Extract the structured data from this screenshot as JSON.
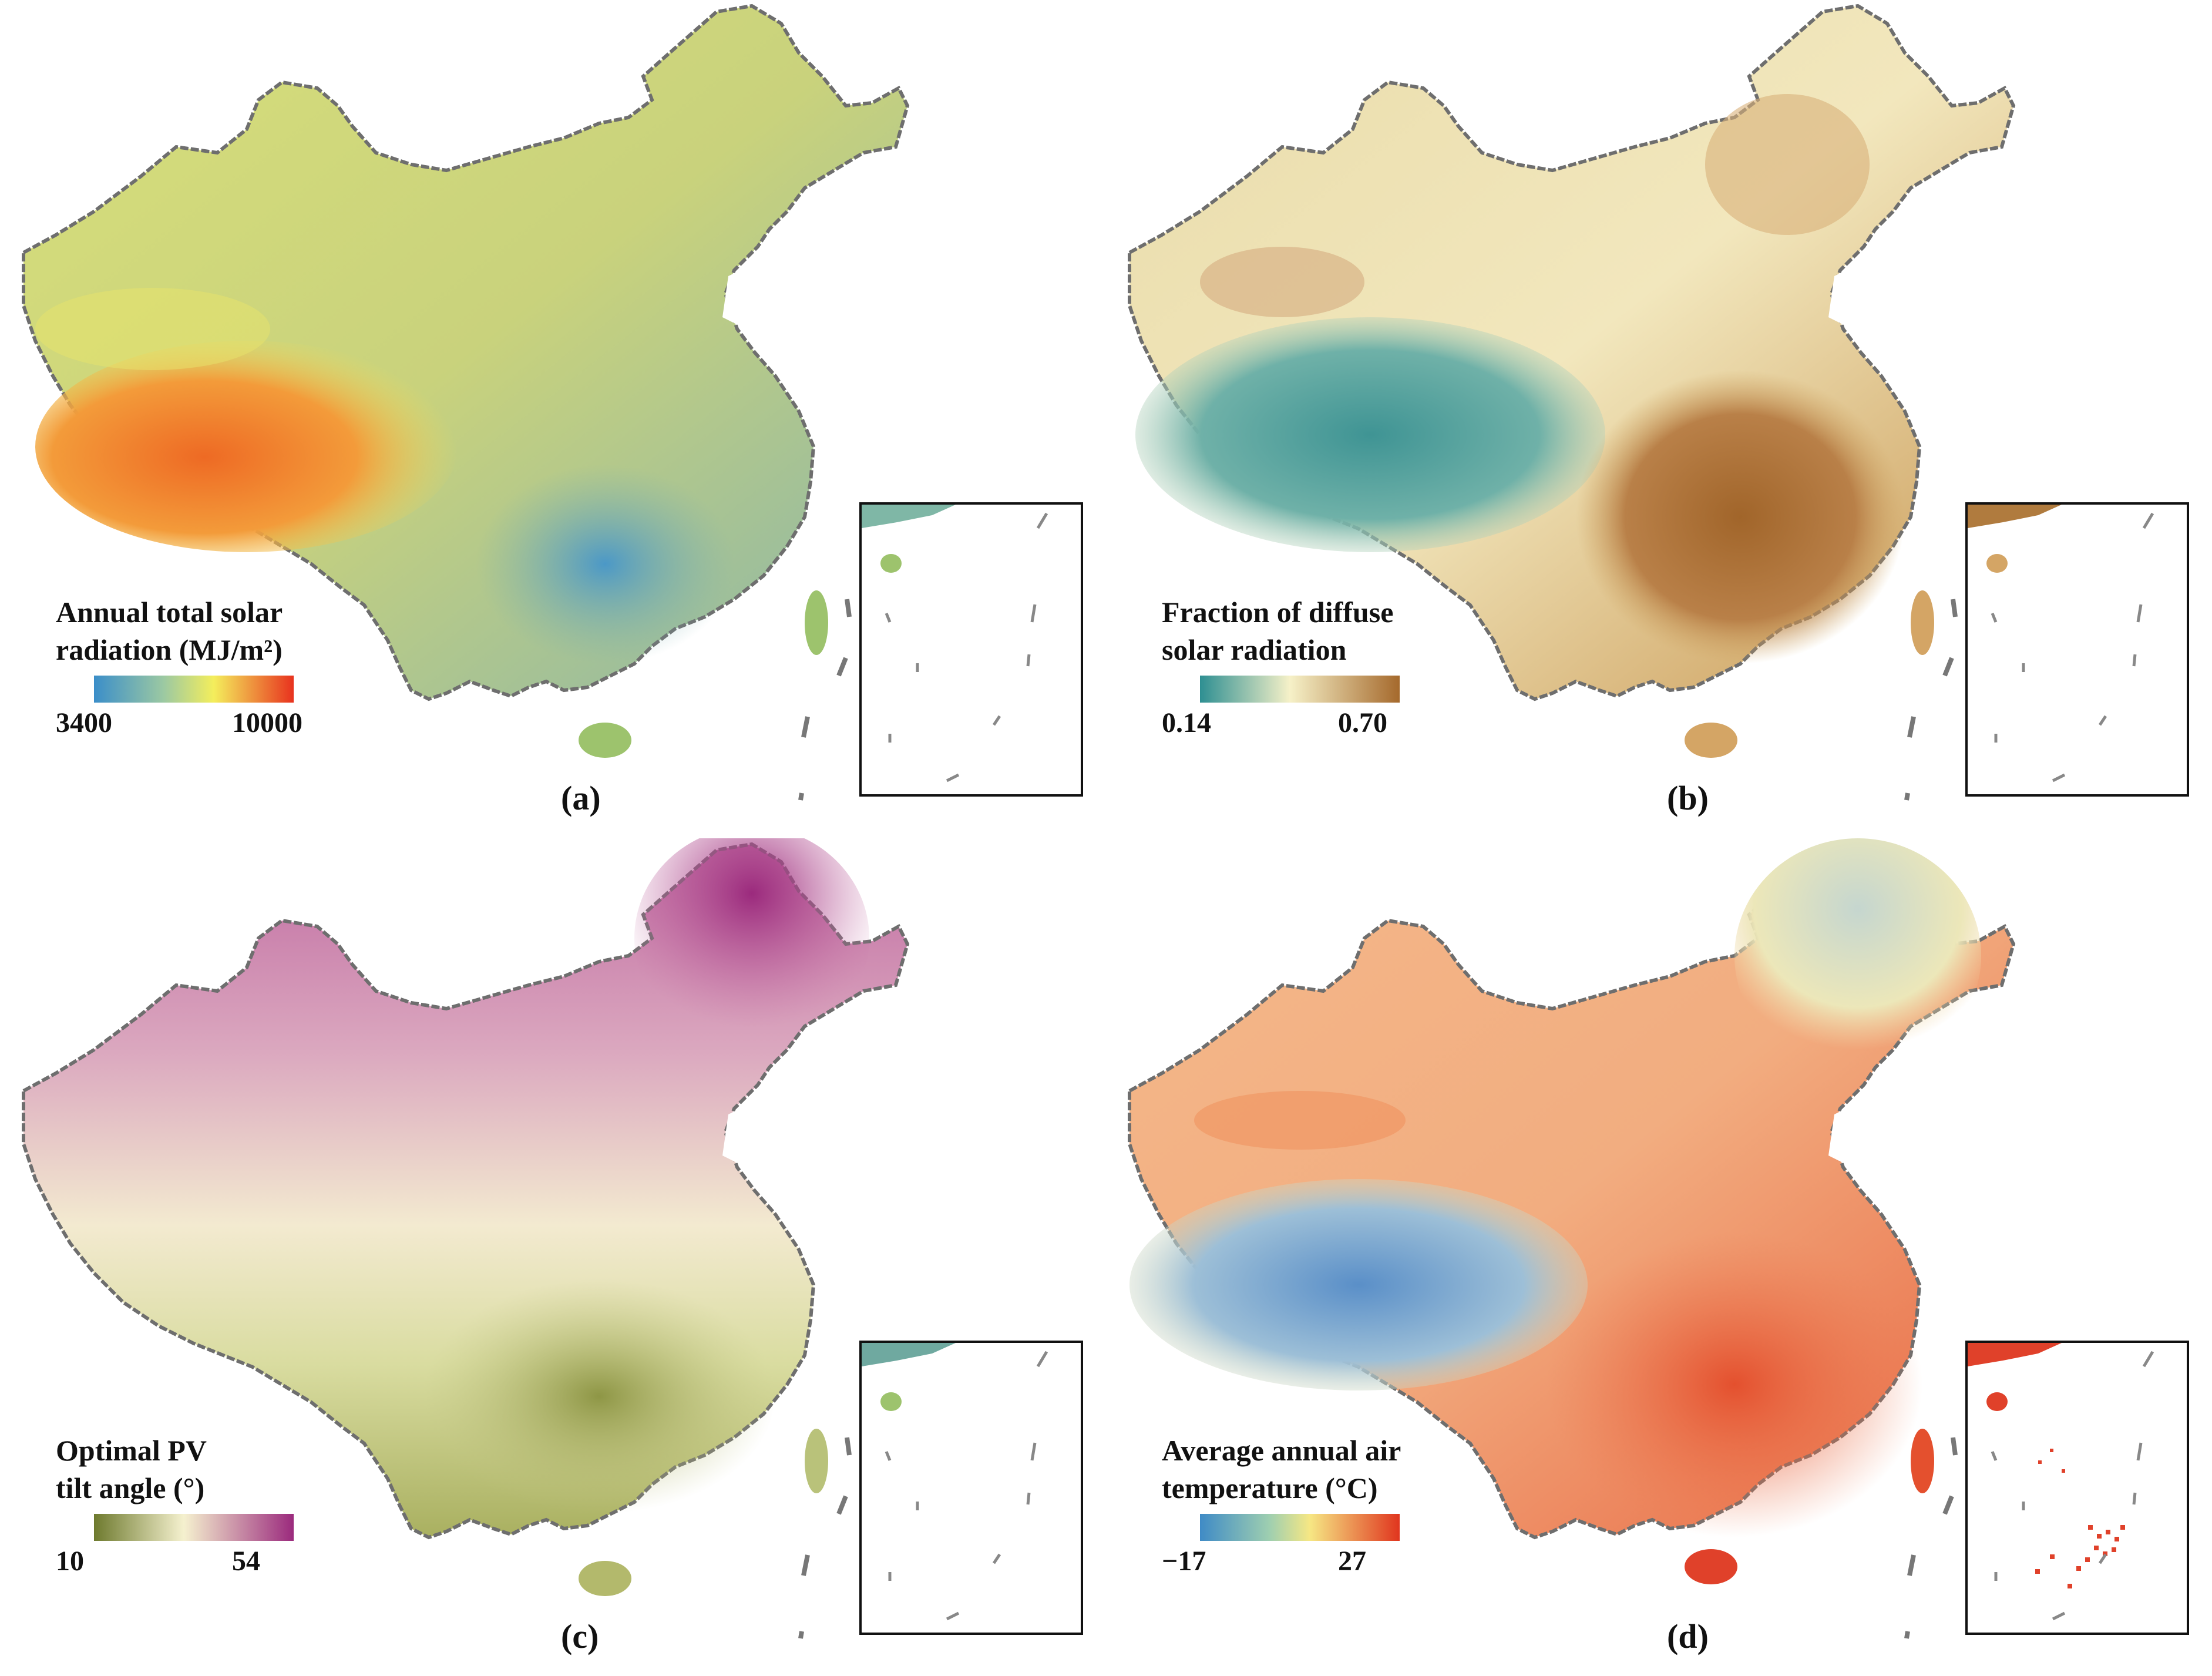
{
  "panels": [
    {
      "id": "a",
      "label": "(a)",
      "legend_line1": "Annual total solar",
      "legend_line2": "radiation (MJ/m²)",
      "min": "3400",
      "max": "10000",
      "colors": {
        "low": "#3b8ec9",
        "mid": "#f4ee5c",
        "high": "#e8321e",
        "tibet": "#f07a2c",
        "north": "#d8df7a",
        "ne": "#8fb8a5",
        "south": "#6fa6b4",
        "inset": "#7fb7a6"
      }
    },
    {
      "id": "b",
      "label": "(b)",
      "legend_line1": "Fraction of diffuse",
      "legend_line2": "solar radiation",
      "min": "0.14",
      "max": "0.70",
      "colors": {
        "low": "#2e8f92",
        "mid": "#f6f1c8",
        "high": "#a5692c",
        "tibet": "#4a9d9c",
        "north": "#e7d9a8",
        "ne": "#d6b078",
        "south": "#b07b3e",
        "inset": "#b07b3e"
      }
    },
    {
      "id": "c",
      "label": "(c)",
      "legend_line1": "Optimal PV",
      "legend_line2": "tilt angle (°)",
      "min": "10",
      "max": "54",
      "colors": {
        "low": "#6e7a2e",
        "mid": "#f5f1cf",
        "high": "#9b2a7d",
        "tibet": "#f3e7c4",
        "north": "#dba8bf",
        "ne": "#a3357f",
        "south": "#b5bb72",
        "inset": "#6fa9a0"
      }
    },
    {
      "id": "d",
      "label": "(d)",
      "legend_line1": "Average annual air",
      "legend_line2": "temperature (°C)",
      "min": "−17",
      "max": "27",
      "colors": {
        "low": "#3f8bc6",
        "mid": "#f6e784",
        "high": "#e0351e",
        "tibet": "#7fa6cf",
        "north": "#f2a878",
        "ne": "#e7e3b8",
        "south": "#ec6a45",
        "inset": "#e0412a"
      }
    }
  ]
}
